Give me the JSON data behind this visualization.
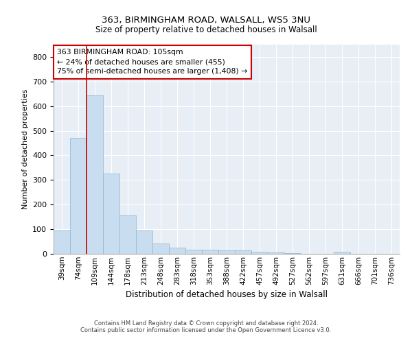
{
  "title_line1": "363, BIRMINGHAM ROAD, WALSALL, WS5 3NU",
  "title_line2": "Size of property relative to detached houses in Walsall",
  "xlabel": "Distribution of detached houses by size in Walsall",
  "ylabel": "Number of detached properties",
  "categories": [
    "39sqm",
    "74sqm",
    "109sqm",
    "144sqm",
    "178sqm",
    "213sqm",
    "248sqm",
    "283sqm",
    "318sqm",
    "353sqm",
    "388sqm",
    "422sqm",
    "457sqm",
    "492sqm",
    "527sqm",
    "562sqm",
    "597sqm",
    "631sqm",
    "666sqm",
    "701sqm",
    "736sqm"
  ],
  "values": [
    95,
    470,
    645,
    325,
    155,
    95,
    42,
    25,
    18,
    18,
    15,
    15,
    8,
    5,
    3,
    0,
    0,
    8,
    0,
    0,
    1
  ],
  "bar_color": "#c9ddf0",
  "bar_edge_color": "#8ab4d4",
  "red_line_x": 1.5,
  "annotation_text": "363 BIRMINGHAM ROAD: 105sqm\n← 24% of detached houses are smaller (455)\n75% of semi-detached houses are larger (1,408) →",
  "annotation_box_color": "#ffffff",
  "annotation_box_edge_color": "#cc0000",
  "ylim": [
    0,
    850
  ],
  "yticks": [
    0,
    100,
    200,
    300,
    400,
    500,
    600,
    700,
    800
  ],
  "background_color": "#e8eef5",
  "grid_color": "#ffffff",
  "footer_line1": "Contains HM Land Registry data © Crown copyright and database right 2024.",
  "footer_line2": "Contains public sector information licensed under the Open Government Licence v3.0."
}
